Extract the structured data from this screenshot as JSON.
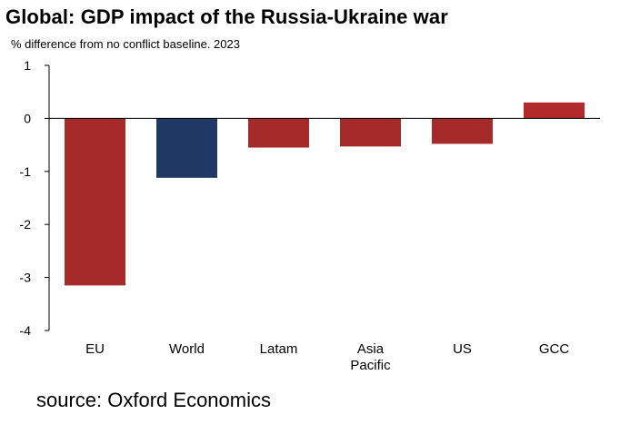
{
  "header": {
    "title": "Global: GDP impact of the Russia-Ukraine war",
    "subtitle": "% difference from no conflict baseline. 2023"
  },
  "footer": {
    "source": "source: Oxford Economics"
  },
  "colors": {
    "negative_bar": "#a52a2a",
    "world_bar": "#1f3864",
    "positive_bar": "#b22a2a",
    "axis": "#000000"
  },
  "chart_data": {
    "type": "bar",
    "title": "Global: GDP impact of the Russia-Ukraine war",
    "subtitle": "% difference from no conflict baseline. 2023",
    "xlabel": "",
    "ylabel": "",
    "categories": [
      "EU",
      "World",
      "Latam",
      "Asia Pacific",
      "US",
      "GCC"
    ],
    "category_lines": [
      [
        "EU"
      ],
      [
        "World"
      ],
      [
        "Latam"
      ],
      [
        "Asia",
        "Pacific"
      ],
      [
        "US"
      ],
      [
        "GCC"
      ]
    ],
    "values": [
      -3.15,
      -1.12,
      -0.55,
      -0.53,
      -0.48,
      0.3
    ],
    "highlight": "World",
    "ylim": [
      -4,
      1
    ],
    "yticks": [
      1,
      0,
      -1,
      -2,
      -3,
      -4
    ],
    "grid": false,
    "legend": "none"
  }
}
